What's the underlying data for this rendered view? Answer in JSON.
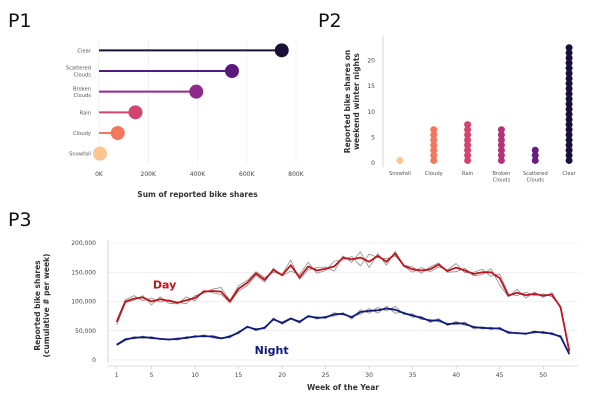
{
  "panels": {
    "p1": "P1",
    "p2": "P2",
    "p3": "P3"
  },
  "colors": {
    "day": "#c0141c",
    "night": "#0d1a7a",
    "raw": "#8c8c8c"
  },
  "chart_data": [
    {
      "id": "p1",
      "type": "bar",
      "orientation": "horizontal",
      "style": "lollipop",
      "categories": [
        "Clear",
        "Scattered Clouds",
        "Broken Clouds",
        "Rain",
        "Cloudy",
        "Snowfall"
      ],
      "category_lines": [
        [
          "Clear"
        ],
        [
          "Scattered",
          "Clouds"
        ],
        [
          "Broken",
          "Clouds"
        ],
        [
          "Rain"
        ],
        [
          "Cloudy"
        ],
        [
          "Snowfall"
        ]
      ],
      "values": [
        742000,
        540000,
        395000,
        148000,
        76000,
        4000
      ],
      "colors": [
        "#1c1038",
        "#5a1a7c",
        "#8e2a8a",
        "#d44470",
        "#f3775c",
        "#fcc490"
      ],
      "xlabel": "Sum of reported bike shares",
      "xlim": [
        0,
        800000
      ],
      "xticks": [
        0,
        200000,
        400000,
        600000,
        800000
      ],
      "xtick_labels": [
        "0K",
        "200K",
        "400K",
        "600K",
        "800K"
      ]
    },
    {
      "id": "p2",
      "type": "scatter",
      "style": "dot-stack",
      "categories": [
        "Snowfall",
        "Cloudy",
        "Rain",
        "Broken Clouds",
        "Scattered Clouds",
        "Clear"
      ],
      "category_lines": [
        [
          "Snowfall"
        ],
        [
          "Cloudy"
        ],
        [
          "Rain"
        ],
        [
          "Broken",
          "Clouds"
        ],
        [
          "Scattered",
          "Clouds"
        ],
        [
          "Clear"
        ]
      ],
      "values": [
        1,
        7,
        8,
        7,
        3,
        23
      ],
      "colors": [
        "#fcc490",
        "#f3775c",
        "#d44470",
        "#b0347a",
        "#6a1c80",
        "#1c1038"
      ],
      "ylabel_lines": [
        "Reported bike shares on",
        "weekend winter nights"
      ],
      "ylim": [
        0,
        24
      ],
      "yticks": [
        0,
        5,
        10,
        15,
        20
      ],
      "ytick_labels": [
        "0",
        "5",
        "10",
        "15",
        "20"
      ]
    },
    {
      "id": "p3",
      "type": "line",
      "x": [
        1,
        2,
        3,
        4,
        5,
        6,
        7,
        8,
        9,
        10,
        11,
        12,
        13,
        14,
        15,
        16,
        17,
        18,
        19,
        20,
        21,
        22,
        23,
        24,
        25,
        26,
        27,
        28,
        29,
        30,
        31,
        32,
        33,
        34,
        35,
        36,
        37,
        38,
        39,
        40,
        41,
        42,
        43,
        44,
        45,
        46,
        47,
        48,
        49,
        50,
        51,
        52,
        53
      ],
      "series": [
        {
          "name": "Day",
          "color": "#c0141c",
          "values": [
            65000,
            100000,
            105000,
            107000,
            100000,
            104000,
            101000,
            98000,
            102000,
            106000,
            117000,
            118000,
            117000,
            100000,
            122000,
            132000,
            148000,
            137000,
            154000,
            145000,
            162000,
            141000,
            160000,
            153000,
            156000,
            160000,
            175000,
            172000,
            175000,
            168000,
            178000,
            168000,
            182000,
            161000,
            155000,
            153000,
            155000,
            163000,
            152000,
            158000,
            153000,
            147000,
            150000,
            150000,
            140000,
            110000,
            115000,
            111000,
            113000,
            110000,
            112000,
            90000,
            15000
          ]
        },
        {
          "name": "Night",
          "color": "#0d1a7a",
          "values": [
            26000,
            35000,
            38000,
            39000,
            38000,
            36000,
            35000,
            36000,
            38000,
            40000,
            41000,
            40000,
            37000,
            40000,
            47000,
            57000,
            52000,
            55000,
            70000,
            63000,
            71000,
            65000,
            75000,
            72000,
            73000,
            78000,
            79000,
            73000,
            82000,
            84000,
            85000,
            88000,
            86000,
            80000,
            76000,
            72000,
            67000,
            68000,
            61000,
            63000,
            62000,
            56000,
            55000,
            54000,
            54000,
            47000,
            46000,
            45000,
            48000,
            47000,
            45000,
            40000,
            10000
          ]
        },
        {
          "color": "#8c8c8c",
          "values": [
            60000,
            98000,
            102000,
            110000,
            94000,
            108000,
            97000,
            96000,
            108000,
            101000,
            119000,
            115000,
            112000,
            98000,
            118000,
            127000,
            145000,
            133000,
            157000,
            144000,
            152000,
            146000,
            167000,
            148000,
            153000,
            169000,
            171000,
            177000,
            161000,
            181000,
            175000,
            173000,
            178000,
            162000,
            159000,
            148000,
            159000,
            166000,
            150000,
            151000,
            157000,
            144000,
            146000,
            156000,
            128000,
            108000,
            121000,
            106000,
            116000,
            107000,
            115000,
            88000,
            14000
          ]
        },
        {
          "color": "#8c8c8c",
          "values": [
            68000,
            103000,
            110000,
            101000,
            106000,
            99000,
            103000,
            99000,
            96000,
            110000,
            114000,
            121000,
            124000,
            102000,
            127000,
            136000,
            151000,
            141000,
            150000,
            146000,
            171000,
            138000,
            154000,
            158000,
            159000,
            152000,
            178000,
            167000,
            185000,
            158000,
            182000,
            162000,
            186000,
            160000,
            150000,
            158000,
            151000,
            159000,
            154000,
            165000,
            149000,
            150000,
            155000,
            143000,
            147000,
            113000,
            110000,
            116000,
            110000,
            113000,
            108000,
            92000,
            16000
          ]
        },
        {
          "color": "#8c8c8c",
          "values": [
            25000,
            33000,
            40000,
            37000,
            40000,
            35000,
            36000,
            34000,
            40000,
            39000,
            43000,
            38000,
            36000,
            42000,
            45000,
            58000,
            50000,
            57000,
            68000,
            65000,
            72000,
            63000,
            76000,
            70000,
            75000,
            75000,
            81000,
            70000,
            86000,
            80000,
            90000,
            84000,
            92000,
            78000,
            79000,
            69000,
            70000,
            65000,
            63000,
            60000,
            65000,
            53000,
            57000,
            52000,
            56000,
            45000,
            47000,
            44000,
            50000,
            45000,
            47000,
            38000,
            9000
          ]
        },
        {
          "color": "#8c8c8c",
          "values": [
            27000,
            37000,
            36000,
            41000,
            36000,
            37000,
            34000,
            38000,
            36000,
            42000,
            39000,
            42000,
            38000,
            38000,
            49000,
            55000,
            54000,
            53000,
            72000,
            61000,
            70000,
            67000,
            73000,
            74000,
            71000,
            81000,
            77000,
            75000,
            78000,
            88000,
            80000,
            92000,
            80000,
            82000,
            73000,
            75000,
            64000,
            71000,
            59000,
            66000,
            59000,
            58000,
            53000,
            56000,
            52000,
            49000,
            45000,
            46000,
            46000,
            49000,
            43000,
            42000,
            11000
          ]
        }
      ],
      "xlabel": "Week of the Year",
      "ylabel_lines": [
        "Reported bike shares",
        "(cumulative # per week)"
      ],
      "xlim": [
        0,
        54
      ],
      "ylim": [
        0,
        200000
      ],
      "xticks": [
        1,
        5,
        10,
        15,
        20,
        25,
        30,
        35,
        40,
        45,
        50
      ],
      "yticks": [
        0,
        50000,
        100000,
        150000,
        200000
      ],
      "ytick_labels": [
        "0",
        "50,000",
        "100,000",
        "150,000",
        "200,000"
      ],
      "annotations": [
        {
          "text": "Day",
          "series": "Day",
          "at_x": 6.5,
          "at_y": 122000
        },
        {
          "text": "Night",
          "series": "Night",
          "at_x": 18.8,
          "at_y": 10000
        }
      ]
    }
  ]
}
